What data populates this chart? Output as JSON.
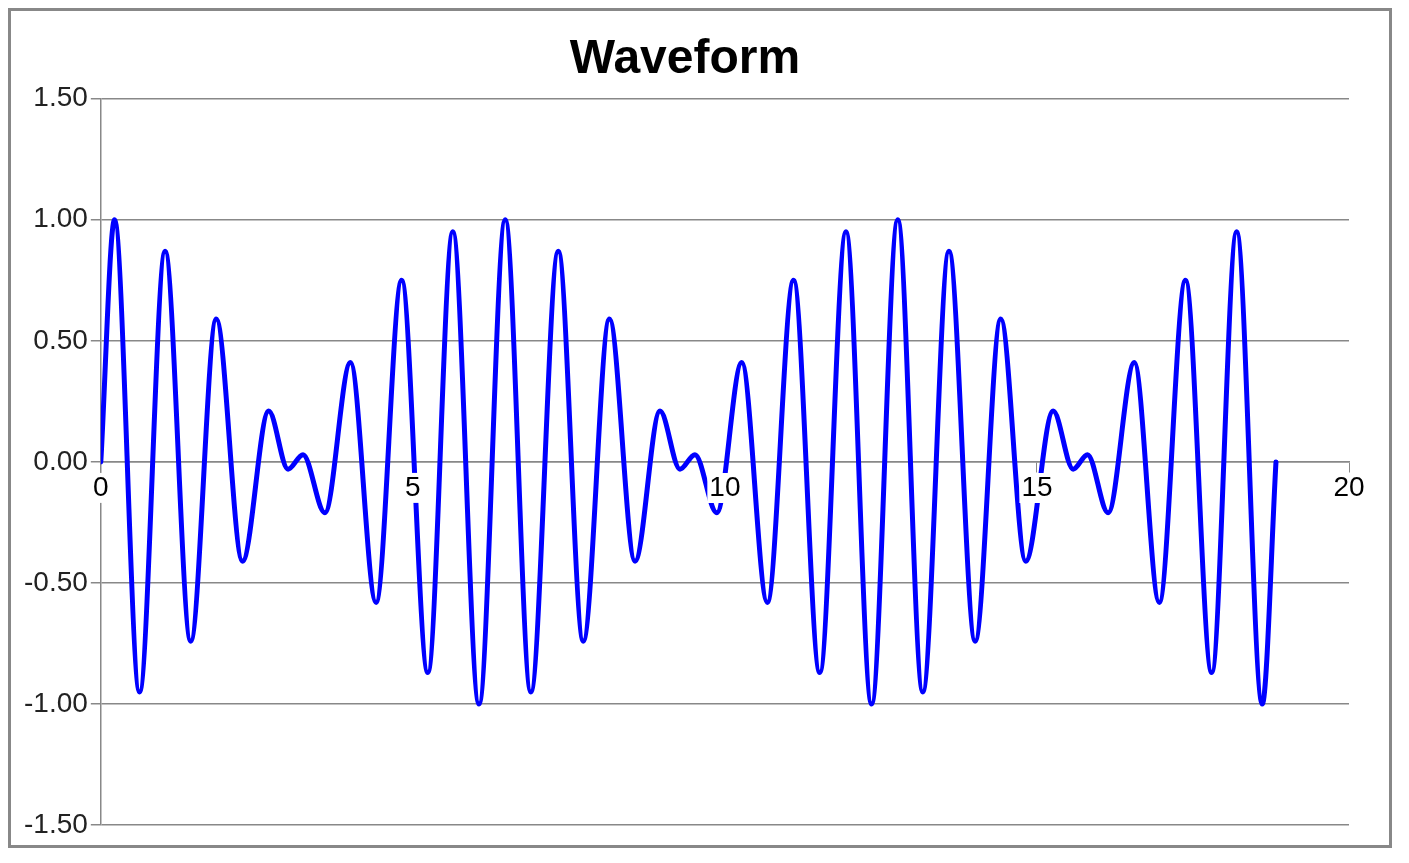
{
  "chart_data": {
    "type": "line",
    "title": "Waveform",
    "x": [
      0,
      0.22,
      0.62,
      1.03,
      1.44,
      1.85,
      2.27,
      2.69,
      3.0,
      3.24,
      3.59,
      4.0,
      4.41,
      4.82,
      5.24,
      5.64,
      6.06,
      6.48,
      6.89,
      7.33,
      7.73,
      8.15,
      8.56,
      8.96,
      9.28,
      9.52,
      9.87,
      10.27,
      10.68,
      11.1,
      11.52,
      11.94,
      12.35,
      12.77,
      13.17,
      13.59,
      14.01,
      14.42,
      14.82,
      15.26,
      15.58,
      15.81,
      16.14,
      16.56,
      16.96,
      17.38,
      17.8,
      18.2,
      18.61,
      18.83
    ],
    "series": [
      {
        "color": "#0000ff",
        "values": [
          0,
          1.0,
          -0.95,
          0.87,
          -0.74,
          0.59,
          -0.41,
          0.21,
          -0.03,
          0.03,
          -0.21,
          0.41,
          -0.58,
          0.75,
          -0.87,
          0.95,
          -1.0,
          1.0,
          -0.95,
          0.87,
          -0.74,
          0.59,
          -0.41,
          0.21,
          -0.03,
          0.03,
          -0.21,
          0.41,
          -0.58,
          0.75,
          -0.87,
          0.95,
          -1.0,
          1.0,
          -0.95,
          0.87,
          -0.74,
          0.59,
          -0.41,
          0.21,
          -0.03,
          0.03,
          -0.21,
          0.41,
          -0.58,
          0.75,
          -0.87,
          0.95,
          -1.0,
          0
        ]
      }
    ],
    "xlim": [
      0,
      20
    ],
    "xticks": [
      0,
      5,
      10,
      15,
      20
    ],
    "ylim": [
      -1.5,
      1.5
    ],
    "yticks": [
      {
        "value": -1.5,
        "label": "-1.50"
      },
      {
        "value": -1,
        "label": "-1.00"
      },
      {
        "value": -0.5,
        "label": "-0.50"
      },
      {
        "value": 0,
        "label": "0.00"
      },
      {
        "value": 0.5,
        "label": "0.50"
      },
      {
        "value": 1,
        "label": "1.00"
      },
      {
        "value": 1.5,
        "label": "1.50"
      }
    ],
    "grid": "y",
    "legend": false,
    "marker": "none",
    "line_style": "solid"
  }
}
